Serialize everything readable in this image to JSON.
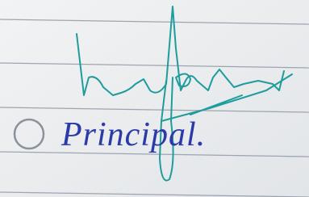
{
  "text": "Principal."
}
